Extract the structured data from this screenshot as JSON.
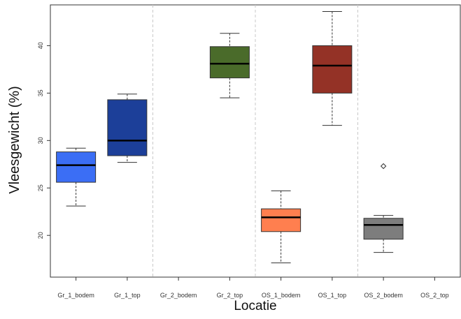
{
  "chart_data": {
    "type": "box",
    "xlabel": "Locatie",
    "ylabel": "Vleesgewicht (%)",
    "categories": [
      "Gr_1_bodem",
      "Gr_1_top",
      "Gr_2_bodem",
      "Gr_2_top",
      "OS_1_bodem",
      "OS_1_top",
      "OS_2_bodem",
      "OS_2_top"
    ],
    "yticks": [
      20,
      25,
      30,
      35,
      40
    ],
    "ylim": [
      15.6,
      44.3
    ],
    "group_separators_after": [
      2,
      4,
      6
    ],
    "grid": false,
    "boxes": [
      {
        "category": "Gr_1_bodem",
        "min": 23.1,
        "q1": 25.6,
        "median": 27.4,
        "q3": 28.8,
        "max": 29.2,
        "outliers": [],
        "color": "#3b6ef5"
      },
      {
        "category": "Gr_1_top",
        "min": 27.7,
        "q1": 28.4,
        "median": 30.0,
        "q3": 34.3,
        "max": 34.9,
        "outliers": [],
        "color": "#1c3f99"
      },
      {
        "category": "Gr_2_top",
        "min": 34.5,
        "q1": 36.6,
        "median": 38.1,
        "q3": 39.9,
        "max": 41.3,
        "outliers": [],
        "color": "#4a6b2a"
      },
      {
        "category": "OS_1_bodem",
        "min": 17.1,
        "q1": 20.4,
        "median": 21.9,
        "q3": 22.8,
        "max": 24.7,
        "outliers": [],
        "color": "#ff7f4f"
      },
      {
        "category": "OS_1_top",
        "min": 31.6,
        "q1": 35.0,
        "median": 37.9,
        "q3": 40.0,
        "max": 43.6,
        "outliers": [],
        "color": "#943226"
      },
      {
        "category": "OS_2_bodem",
        "min": 18.2,
        "q1": 19.6,
        "median": 21.1,
        "q3": 21.8,
        "max": 22.1,
        "outliers": [
          27.3
        ],
        "color": "#7d7d7d"
      }
    ]
  }
}
